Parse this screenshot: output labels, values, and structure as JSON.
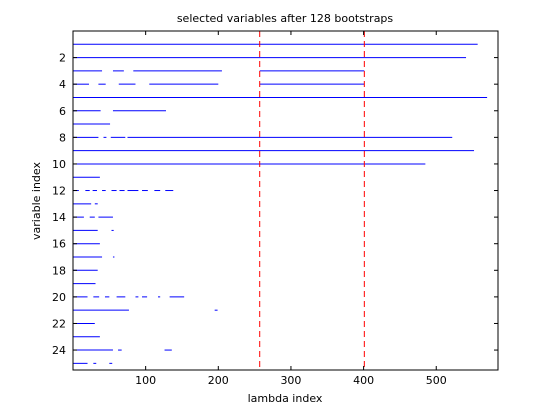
{
  "chart_data": {
    "type": "segments",
    "title": "selected variables after 128 bootstraps",
    "xlabel": "lambda index",
    "ylabel": "variable index",
    "xlim": [
      0,
      585
    ],
    "ylim": [
      0,
      25.5
    ],
    "y_reversed": true,
    "xticks": [
      100,
      200,
      300,
      400,
      500
    ],
    "yticks": [
      2,
      4,
      6,
      8,
      10,
      12,
      14,
      16,
      18,
      20,
      22,
      24
    ],
    "grid": false,
    "segment_color": "#0000ff",
    "vlines": [
      {
        "x": 257,
        "color": "#ff0000",
        "style": "dashed"
      },
      {
        "x": 401,
        "color": "#ff0000",
        "style": "dashed"
      }
    ],
    "variables": [
      {
        "index": 1,
        "segments": [
          [
            0,
            557
          ]
        ]
      },
      {
        "index": 2,
        "segments": [
          [
            0,
            541
          ]
        ]
      },
      {
        "index": 3,
        "segments": [
          [
            0,
            40
          ],
          [
            55,
            70
          ],
          [
            83,
            205
          ],
          [
            257,
            401
          ]
        ]
      },
      {
        "index": 4,
        "segments": [
          [
            0,
            22
          ],
          [
            35,
            45
          ],
          [
            63,
            86
          ],
          [
            105,
            200
          ],
          [
            257,
            401
          ]
        ]
      },
      {
        "index": 5,
        "segments": [
          [
            0,
            570
          ]
        ]
      },
      {
        "index": 6,
        "segments": [
          [
            0,
            38
          ],
          [
            55,
            128
          ]
        ]
      },
      {
        "index": 7,
        "segments": [
          [
            0,
            51
          ]
        ]
      },
      {
        "index": 8,
        "segments": [
          [
            0,
            35
          ],
          [
            42,
            46
          ],
          [
            52,
            72
          ],
          [
            75,
            522
          ]
        ]
      },
      {
        "index": 9,
        "segments": [
          [
            0,
            552
          ]
        ]
      },
      {
        "index": 10,
        "segments": [
          [
            0,
            485
          ]
        ]
      },
      {
        "index": 11,
        "segments": [
          [
            0,
            37
          ]
        ]
      },
      {
        "index": 12,
        "segments": [
          [
            0,
            8
          ],
          [
            17,
            23
          ],
          [
            27,
            33
          ],
          [
            40,
            45
          ],
          [
            53,
            60
          ],
          [
            64,
            71
          ],
          [
            75,
            90
          ],
          [
            95,
            103
          ],
          [
            112,
            120
          ],
          [
            127,
            138
          ]
        ]
      },
      {
        "index": 13,
        "segments": [
          [
            0,
            25
          ],
          [
            30,
            34
          ]
        ]
      },
      {
        "index": 14,
        "segments": [
          [
            0,
            15
          ],
          [
            23,
            30
          ],
          [
            35,
            55
          ]
        ]
      },
      {
        "index": 15,
        "segments": [
          [
            0,
            34
          ],
          [
            53,
            56
          ]
        ]
      },
      {
        "index": 16,
        "segments": [
          [
            0,
            37
          ]
        ]
      },
      {
        "index": 17,
        "segments": [
          [
            0,
            40
          ],
          [
            55,
            57
          ]
        ]
      },
      {
        "index": 18,
        "segments": [
          [
            0,
            34
          ]
        ]
      },
      {
        "index": 19,
        "segments": [
          [
            0,
            31
          ]
        ]
      },
      {
        "index": 20,
        "segments": [
          [
            0,
            20
          ],
          [
            28,
            36
          ],
          [
            44,
            50
          ],
          [
            60,
            72
          ],
          [
            86,
            90
          ],
          [
            95,
            102
          ],
          [
            117,
            120
          ],
          [
            133,
            153
          ]
        ]
      },
      {
        "index": 21,
        "segments": [
          [
            0,
            77
          ],
          [
            195,
            199
          ]
        ]
      },
      {
        "index": 22,
        "segments": [
          [
            0,
            30
          ]
        ]
      },
      {
        "index": 23,
        "segments": [
          [
            0,
            37
          ]
        ]
      },
      {
        "index": 24,
        "segments": [
          [
            0,
            55
          ],
          [
            62,
            67
          ],
          [
            126,
            136
          ]
        ]
      },
      {
        "index": 25,
        "segments": [
          [
            0,
            20
          ],
          [
            28,
            32
          ],
          [
            50,
            54
          ]
        ]
      }
    ]
  }
}
